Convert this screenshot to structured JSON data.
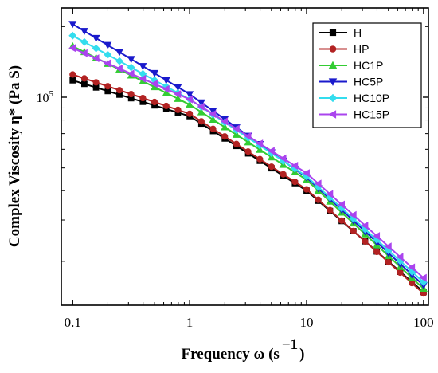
{
  "chart_data": {
    "type": "line",
    "xscale": "log",
    "yscale": "log",
    "xlabel": "Frequency ω (s",
    "xlabel_sup": "−1",
    "xlabel_close": ")",
    "ylabel": "Complex Viscosity η* (Pa S)",
    "xlim": [
      0.08,
      110
    ],
    "ylim": [
      13000,
      240000
    ],
    "x_ticks": [
      {
        "value": 0.1,
        "label": "0.1"
      },
      {
        "value": 1,
        "label": "1"
      },
      {
        "value": 10,
        "label": "10"
      },
      {
        "value": 100,
        "label": "100"
      }
    ],
    "y_tick_label": {
      "value": 100000,
      "base": "10",
      "exp": "5"
    },
    "legend_position": "top-right",
    "marker_count": 31,
    "series": [
      {
        "name": "H",
        "color": "#000000",
        "marker": "square",
        "y0": 118000,
        "y_at_1": 83000,
        "y_at_10": 40000,
        "y_end": 14800
      },
      {
        "name": "HP",
        "color": "#b22222",
        "marker": "circle",
        "y0": 125000,
        "y_at_1": 85000,
        "y_at_10": 40500,
        "y_end": 14600
      },
      {
        "name": "HC1P",
        "color": "#33cc33",
        "marker": "triangle-up",
        "y0": 165000,
        "y_at_1": 93000,
        "y_at_10": 44500,
        "y_end": 15300
      },
      {
        "name": "HC5P",
        "color": "#1a1acc",
        "marker": "triangle-down",
        "y0": 205000,
        "y_at_1": 103000,
        "y_at_10": 45500,
        "y_end": 15800
      },
      {
        "name": "HC10P",
        "color": "#33ddee",
        "marker": "diamond",
        "y0": 183000,
        "y_at_1": 98000,
        "y_at_10": 46000,
        "y_end": 16300
      },
      {
        "name": "HC15P",
        "color": "#aa44ee",
        "marker": "triangle-left",
        "y0": 162000,
        "y_at_1": 98000,
        "y_at_10": 47500,
        "y_end": 17000
      }
    ]
  }
}
